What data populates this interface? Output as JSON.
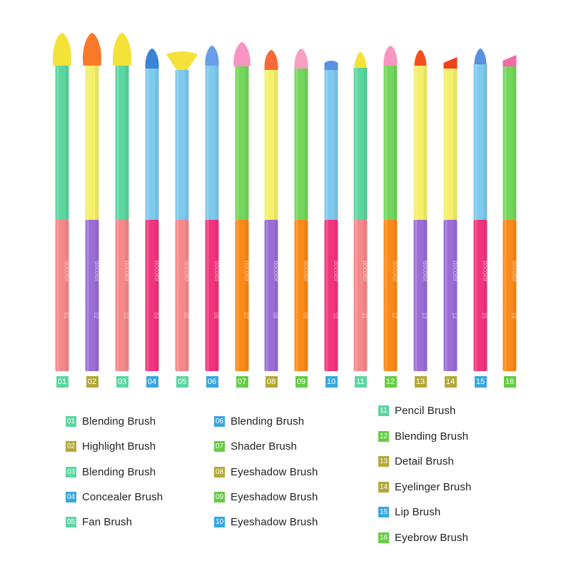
{
  "colors": {
    "mint": "#5cd6a0",
    "yellow": "#f4f06a",
    "sky": "#7ec9ee",
    "lime": "#74d65c",
    "coral": "#f6888a",
    "purple": "#9a6ed6",
    "magenta": "#f2347c",
    "orange": "#fb8a18",
    "text": "#222222"
  },
  "brushes": [
    {
      "number": "01",
      "top": "mint",
      "bottom": "coral",
      "tip": "#f5e238",
      "tip_shape": "round-large",
      "badge": "#5cd6a0"
    },
    {
      "number": "02",
      "top": "yellow",
      "bottom": "purple",
      "tip": "#f9792a",
      "tip_shape": "round-large",
      "badge": "#b5a838"
    },
    {
      "number": "03",
      "top": "mint",
      "bottom": "coral",
      "tip": "#f5e238",
      "tip_shape": "round-large",
      "badge": "#5cd6a0"
    },
    {
      "number": "04",
      "top": "sky",
      "bottom": "magenta",
      "tip": "#3a84d8",
      "tip_shape": "round-small",
      "badge": "#3aa6de"
    },
    {
      "number": "05",
      "top": "sky",
      "bottom": "coral",
      "tip": "#f5e238",
      "tip_shape": "fan",
      "badge": "#5cd6a0"
    },
    {
      "number": "06",
      "top": "sky",
      "bottom": "magenta",
      "tip": "#6a9ee8",
      "tip_shape": "round-small",
      "badge": "#3aa6de"
    },
    {
      "number": "07",
      "top": "lime",
      "bottom": "orange",
      "tip": "#f796c0",
      "tip_shape": "round-medium",
      "badge": "#66cc44"
    },
    {
      "number": "08",
      "top": "yellow",
      "bottom": "purple",
      "tip": "#f46a3a",
      "tip_shape": "round-small",
      "badge": "#b5a838"
    },
    {
      "number": "09",
      "top": "lime",
      "bottom": "orange",
      "tip": "#f6a0c4",
      "tip_shape": "round-small",
      "badge": "#66cc44"
    },
    {
      "number": "10",
      "top": "sky",
      "bottom": "magenta",
      "tip": "#5a90e0",
      "tip_shape": "flat",
      "badge": "#3aa6de"
    },
    {
      "number": "11",
      "top": "mint",
      "bottom": "coral",
      "tip": "#f5e238",
      "tip_shape": "pencil",
      "badge": "#5cd6a0"
    },
    {
      "number": "12",
      "top": "lime",
      "bottom": "orange",
      "tip": "#f796c0",
      "tip_shape": "round-small",
      "badge": "#66cc44"
    },
    {
      "number": "13",
      "top": "yellow",
      "bottom": "purple",
      "tip": "#f4501e",
      "tip_shape": "pencil",
      "badge": "#b5a838"
    },
    {
      "number": "14",
      "top": "yellow",
      "bottom": "purple",
      "tip": "#f0401a",
      "tip_shape": "angled",
      "badge": "#b5a838"
    },
    {
      "number": "15",
      "top": "sky",
      "bottom": "magenta",
      "tip": "#5a90e0",
      "tip_shape": "pencil",
      "badge": "#3aa6de"
    },
    {
      "number": "16",
      "top": "lime",
      "bottom": "orange",
      "tip": "#f46aa8",
      "tip_shape": "angled",
      "badge": "#66cc44"
    }
  ],
  "handle_mark": "docolor",
  "legend": {
    "col1": [
      {
        "number": "01",
        "label": "Blending Brush",
        "badge": "#5cd6a0"
      },
      {
        "number": "02",
        "label": "Highlight Brush",
        "badge": "#b5a838"
      },
      {
        "number": "03",
        "label": "Blending Brush",
        "badge": "#5cd6a0"
      },
      {
        "number": "04",
        "label": "Concealer Brush",
        "badge": "#3aa6de"
      },
      {
        "number": "05",
        "label": "Fan Brush",
        "badge": "#5cd6a0"
      }
    ],
    "col2": [
      {
        "number": "06",
        "label": "Blending Brush",
        "badge": "#3aa6de"
      },
      {
        "number": "07",
        "label": "Shader Brush",
        "badge": "#66cc44"
      },
      {
        "number": "08",
        "label": "Eyeshadow Brush",
        "badge": "#b5a838"
      },
      {
        "number": "09",
        "label": "Eyeshadow Brush",
        "badge": "#66cc44"
      },
      {
        "number": "10",
        "label": "Eyeshadow Brush",
        "badge": "#3aa6de"
      }
    ],
    "col3": [
      {
        "number": "11",
        "label": "Pencil Brush",
        "badge": "#5cd6a0"
      },
      {
        "number": "12",
        "label": "Blending Brush",
        "badge": "#66cc44"
      },
      {
        "number": "13",
        "label": "Detail Brush",
        "badge": "#b5a838"
      },
      {
        "number": "14",
        "label": "Eyelinger Brush",
        "badge": "#b5a838"
      },
      {
        "number": "15",
        "label": "Lip Brush",
        "badge": "#3aa6de"
      },
      {
        "number": "16",
        "label": "Eyebrow Brush",
        "badge": "#66cc44"
      }
    ]
  }
}
